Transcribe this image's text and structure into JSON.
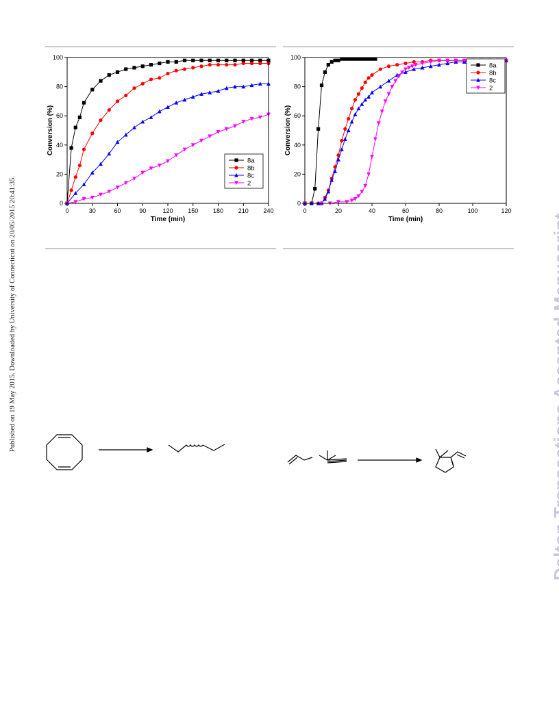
{
  "watermark": {
    "left_text": "Published on 19 May 2015. Downloaded by University of Connecticut on 20/05/2015 20:41:35.",
    "right_text": "Dalton Transactions Accepted Manuscript"
  },
  "colors": {
    "8a": "#000000",
    "8b": "#ff0000",
    "8c": "#0000ff",
    "2": "#ff00ff"
  },
  "chart_data": [
    {
      "type": "line",
      "xlabel": "Time (min)",
      "ylabel": "Conversion (%)",
      "xlim": [
        0,
        240
      ],
      "ylim": [
        0,
        100
      ],
      "xticks": [
        0,
        30,
        60,
        90,
        120,
        150,
        180,
        210,
        240
      ],
      "yticks": [
        0,
        20,
        40,
        60,
        80,
        100
      ],
      "legend_position": "bottom-right",
      "series": [
        {
          "name": "8a",
          "marker": "square",
          "x": [
            0,
            5,
            10,
            15,
            20,
            30,
            40,
            50,
            60,
            70,
            80,
            90,
            100,
            110,
            120,
            130,
            140,
            150,
            160,
            170,
            180,
            190,
            200,
            210,
            220,
            230,
            240
          ],
          "y": [
            0,
            38,
            52,
            59,
            69,
            78,
            84,
            88,
            90,
            92,
            93,
            94,
            95,
            96,
            97,
            97,
            98,
            98,
            98,
            98,
            98,
            98,
            98,
            98,
            98,
            98,
            98
          ]
        },
        {
          "name": "8b",
          "marker": "circle",
          "x": [
            0,
            5,
            10,
            15,
            20,
            30,
            40,
            50,
            60,
            70,
            80,
            90,
            100,
            110,
            120,
            130,
            140,
            150,
            160,
            170,
            180,
            190,
            200,
            210,
            220,
            230,
            240
          ],
          "y": [
            0,
            9,
            18,
            26,
            37,
            48,
            57,
            64,
            70,
            74,
            79,
            82,
            85,
            86,
            89,
            91,
            92,
            93,
            94,
            95,
            95,
            95,
            95,
            96,
            96,
            96,
            96
          ]
        },
        {
          "name": "8c",
          "marker": "triangle-up",
          "x": [
            0,
            10,
            20,
            30,
            40,
            50,
            60,
            70,
            80,
            90,
            100,
            110,
            120,
            130,
            140,
            150,
            160,
            170,
            180,
            190,
            200,
            210,
            220,
            230,
            240
          ],
          "y": [
            0,
            7,
            13,
            21,
            27,
            34,
            42,
            47,
            52,
            56,
            59,
            63,
            66,
            69,
            71,
            73,
            75,
            76,
            77,
            79,
            80,
            80,
            81,
            82,
            82
          ]
        },
        {
          "name": "2",
          "marker": "triangle-down",
          "x": [
            0,
            10,
            20,
            30,
            40,
            50,
            60,
            70,
            80,
            90,
            100,
            110,
            120,
            130,
            140,
            150,
            160,
            170,
            180,
            190,
            200,
            210,
            220,
            230,
            240
          ],
          "y": [
            0,
            1,
            3,
            4,
            6,
            8,
            11,
            14,
            17,
            21,
            24,
            26,
            29,
            33,
            37,
            40,
            43,
            46,
            49,
            51,
            53,
            56,
            58,
            59,
            61
          ]
        }
      ]
    },
    {
      "type": "line",
      "xlabel": "Time (min)",
      "ylabel": "Conversion (%)",
      "xlim": [
        0,
        120
      ],
      "ylim": [
        0,
        100
      ],
      "xticks": [
        0,
        20,
        40,
        60,
        80,
        100,
        120
      ],
      "yticks": [
        0,
        20,
        40,
        60,
        80,
        100
      ],
      "legend_position": "top-right",
      "series": [
        {
          "name": "8a",
          "marker": "square",
          "x": [
            0,
            4,
            6,
            8,
            10,
            12,
            14,
            16,
            18,
            20,
            22,
            24,
            26,
            28,
            30,
            32,
            34,
            36,
            38,
            40,
            42
          ],
          "y": [
            0,
            0,
            10,
            51,
            81,
            90,
            95,
            97,
            98,
            98,
            99,
            99,
            99,
            99,
            99,
            99,
            99,
            99,
            99,
            99,
            99
          ]
        },
        {
          "name": "8b",
          "marker": "circle",
          "x": [
            0,
            4,
            8,
            10,
            12,
            14,
            16,
            18,
            20,
            22,
            24,
            26,
            28,
            30,
            32,
            34,
            36,
            38,
            40,
            45,
            50,
            55,
            60,
            65,
            70,
            75,
            80,
            85,
            90,
            95,
            100,
            105,
            110,
            115,
            120
          ],
          "y": [
            0,
            0,
            0,
            0,
            4,
            9,
            17,
            25,
            33,
            43,
            51,
            58,
            65,
            71,
            75,
            79,
            83,
            86,
            88,
            92,
            94,
            95,
            96,
            97,
            97,
            98,
            98,
            98,
            98,
            98,
            98,
            98,
            98,
            98,
            98
          ]
        },
        {
          "name": "8c",
          "marker": "triangle-up",
          "x": [
            0,
            4,
            8,
            10,
            12,
            14,
            16,
            18,
            20,
            22,
            24,
            26,
            28,
            30,
            32,
            34,
            36,
            38,
            40,
            45,
            50,
            55,
            60,
            65,
            70,
            75,
            80,
            85,
            90,
            95,
            100,
            105,
            110,
            115,
            120
          ],
          "y": [
            0,
            0,
            0,
            0,
            3,
            8,
            16,
            22,
            30,
            37,
            44,
            50,
            56,
            61,
            65,
            68,
            71,
            73,
            76,
            80,
            84,
            88,
            90,
            92,
            93,
            94,
            95,
            96,
            97,
            97,
            98,
            98,
            98,
            98,
            98
          ]
        },
        {
          "name": "2",
          "marker": "triangle-down",
          "x": [
            0,
            10,
            15,
            20,
            25,
            28,
            30,
            32,
            34,
            36,
            38,
            40,
            42,
            44,
            46,
            48,
            50,
            52,
            54,
            56,
            58,
            60,
            62,
            64,
            66,
            70,
            75,
            80,
            85,
            90,
            95,
            100,
            105,
            110,
            115,
            120
          ],
          "y": [
            0,
            0,
            0,
            1,
            1,
            2,
            3,
            5,
            8,
            12,
            20,
            32,
            44,
            55,
            63,
            70,
            75,
            80,
            84,
            87,
            90,
            92,
            93,
            94,
            95,
            96,
            97,
            98,
            98,
            98,
            98,
            98,
            98,
            98,
            98,
            98
          ]
        }
      ]
    }
  ],
  "legend_labels": [
    "8a",
    "8b",
    "8c",
    "2"
  ]
}
